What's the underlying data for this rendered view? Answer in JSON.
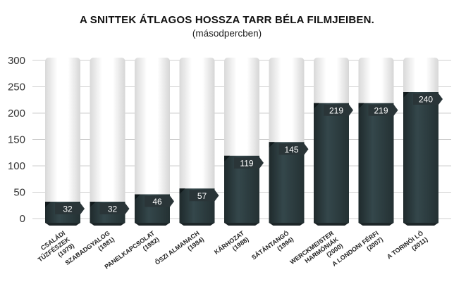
{
  "chart_data": {
    "type": "bar",
    "title": "A SNITTEK ÁTLAGOS HOSSZA TARR BÉLA FILMJEIBEN.",
    "subtitle": "(másodpercben)",
    "ylim": [
      0,
      300
    ],
    "yticks": [
      0,
      50,
      100,
      150,
      200,
      250,
      300
    ],
    "grid": true,
    "categories": [
      [
        "CSALÁDI",
        "TŰZFÉSZEK",
        "(1979)"
      ],
      [
        "SZABADGYALOG",
        "(1981)"
      ],
      [
        "PANELKAPCSOLAT",
        "(1982)"
      ],
      [
        "ŐSZI ALMANACH",
        "(1984)"
      ],
      [
        "KÁRHOZAT",
        "(1988)"
      ],
      [
        "SÁTÁNTANGÓ",
        "(1994)"
      ],
      [
        "WERCKMEISTER",
        "HARMÓNIÁK",
        "(2000)"
      ],
      [
        "A LONDONI FÉRFI",
        "(2007)"
      ],
      [
        "A TORINÓI LÓ",
        "(2011)"
      ]
    ],
    "values": [
      32,
      32,
      46,
      57,
      119,
      145,
      219,
      219,
      240
    ],
    "colors": {
      "bar": "#2d3b3e",
      "track": "#f2f2f2",
      "grid": "#cfcfcf",
      "value_text": "#ffffff"
    }
  }
}
